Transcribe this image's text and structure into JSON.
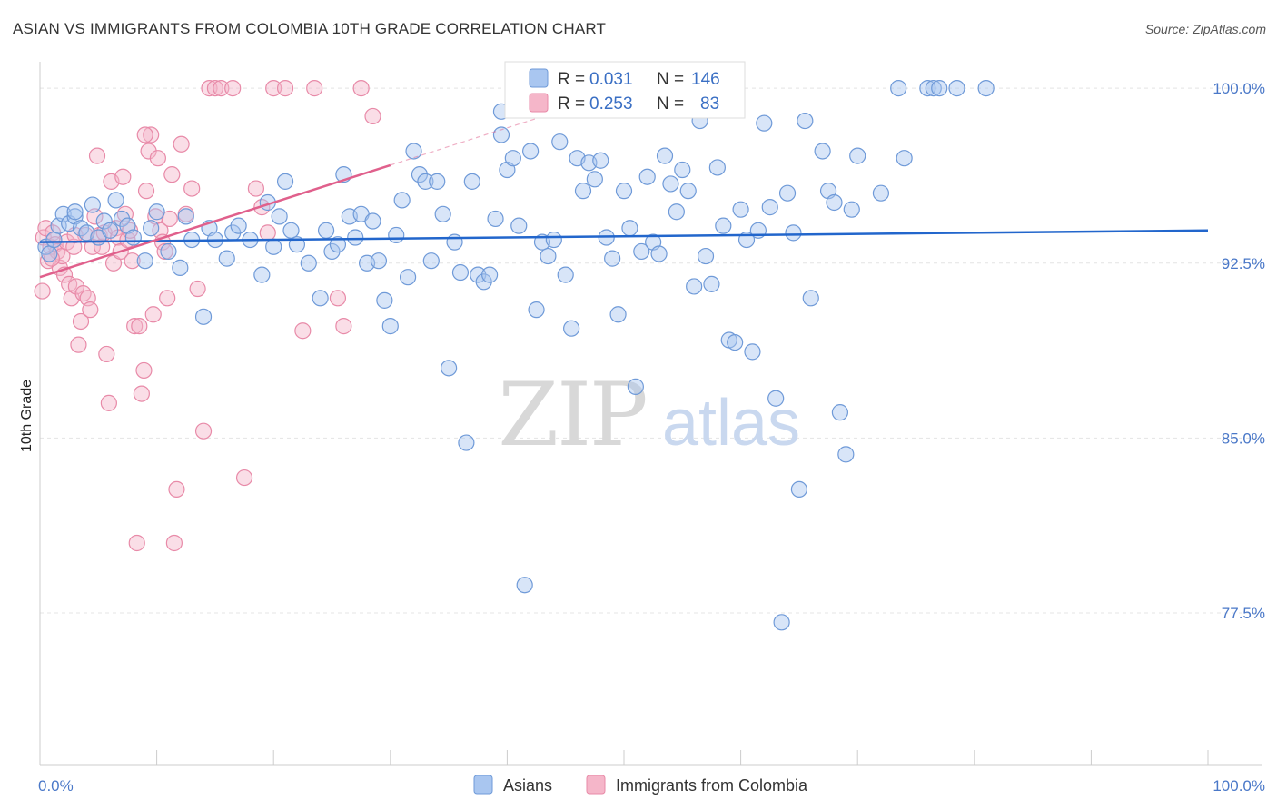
{
  "title": "ASIAN VS IMMIGRANTS FROM COLOMBIA 10TH GRADE CORRELATION CHART",
  "source": "Source: ZipAtlas.com",
  "watermark": {
    "zip": "ZIP",
    "atlas": "atlas"
  },
  "colors": {
    "asian_fill": "#a9c6f0",
    "asian_stroke": "#6f9ad8",
    "asian_line": "#2266cc",
    "colombia_fill": "#f5b6c9",
    "colombia_stroke": "#e88aa8",
    "colombia_line": "#e0608c",
    "grid": "#e4e4e4",
    "tick_text": "#4a78c8"
  },
  "chart_data": {
    "type": "scatter",
    "title": "ASIAN VS IMMIGRANTS FROM COLOMBIA 10TH GRADE CORRELATION CHART",
    "xlabel": "",
    "ylabel": "10th Grade",
    "xlim": [
      0,
      100
    ],
    "ylim": [
      71,
      100.9
    ],
    "x_tick_labels": [
      "0.0%",
      "100.0%"
    ],
    "y_ticks": [
      77.5,
      85.0,
      92.5,
      100.0
    ],
    "y_tick_labels": [
      "77.5%",
      "85.0%",
      "92.5%",
      "100.0%"
    ],
    "grid": true,
    "legend_position": "bottom",
    "stats_box": [
      {
        "series": "Asians",
        "r_label": "R =",
        "r": "0.031",
        "n_label": "N =",
        "n": "146"
      },
      {
        "series": "Immigrants from Colombia",
        "r_label": "R =",
        "r": "0.253",
        "n_label": "N =",
        "n": "83"
      }
    ],
    "series": [
      {
        "name": "Asians",
        "trend": {
          "x": [
            0,
            100
          ],
          "y": [
            93.4,
            93.9
          ]
        },
        "points": [
          [
            0.5,
            93.2
          ],
          [
            0.8,
            92.9
          ],
          [
            1.2,
            93.5
          ],
          [
            1.6,
            94.1
          ],
          [
            2.0,
            94.6
          ],
          [
            2.5,
            94.2
          ],
          [
            3.0,
            94.5
          ],
          [
            3.5,
            94.0
          ],
          [
            4.0,
            93.8
          ],
          [
            4.5,
            95.0
          ],
          [
            5.0,
            93.6
          ],
          [
            5.5,
            94.3
          ],
          [
            6.0,
            93.9
          ],
          [
            6.5,
            95.2
          ],
          [
            7.0,
            94.4
          ],
          [
            7.5,
            94.1
          ],
          [
            8.0,
            93.6
          ],
          [
            9.0,
            92.6
          ],
          [
            9.5,
            94.0
          ],
          [
            10.0,
            94.7
          ],
          [
            11.0,
            93.0
          ],
          [
            12.0,
            92.3
          ],
          [
            12.5,
            94.5
          ],
          [
            13.0,
            93.5
          ],
          [
            14.0,
            90.2
          ],
          [
            14.5,
            94.0
          ],
          [
            15.0,
            93.5
          ],
          [
            16.0,
            92.7
          ],
          [
            16.5,
            93.8
          ],
          [
            17.0,
            94.1
          ],
          [
            18.0,
            93.5
          ],
          [
            19.0,
            92.0
          ],
          [
            19.5,
            95.1
          ],
          [
            20.0,
            93.2
          ],
          [
            20.5,
            94.5
          ],
          [
            21.0,
            96.0
          ],
          [
            21.5,
            93.9
          ],
          [
            22.0,
            93.3
          ],
          [
            23.0,
            92.5
          ],
          [
            24.0,
            91.0
          ],
          [
            24.5,
            93.9
          ],
          [
            25.0,
            93.0
          ],
          [
            25.5,
            93.3
          ],
          [
            26.0,
            96.3
          ],
          [
            26.5,
            94.5
          ],
          [
            27.0,
            93.6
          ],
          [
            27.5,
            94.6
          ],
          [
            28.0,
            92.5
          ],
          [
            28.5,
            94.3
          ],
          [
            29.0,
            92.6
          ],
          [
            29.5,
            90.9
          ],
          [
            30.0,
            89.8
          ],
          [
            30.5,
            93.7
          ],
          [
            31.0,
            95.2
          ],
          [
            31.5,
            91.9
          ],
          [
            32.0,
            97.3
          ],
          [
            32.5,
            96.3
          ],
          [
            33.0,
            96.0
          ],
          [
            33.5,
            92.6
          ],
          [
            34.0,
            96.0
          ],
          [
            34.5,
            94.6
          ],
          [
            35.0,
            88.0
          ],
          [
            35.5,
            93.4
          ],
          [
            36.0,
            92.1
          ],
          [
            36.5,
            84.8
          ],
          [
            37.0,
            96.0
          ],
          [
            37.5,
            92.0
          ],
          [
            38.0,
            91.7
          ],
          [
            38.5,
            92.0
          ],
          [
            39.0,
            94.4
          ],
          [
            39.5,
            98.0
          ],
          [
            40.0,
            96.5
          ],
          [
            40.5,
            97.0
          ],
          [
            41.0,
            94.1
          ],
          [
            41.5,
            78.7
          ],
          [
            42.0,
            97.3
          ],
          [
            42.5,
            90.5
          ],
          [
            43.0,
            93.4
          ],
          [
            43.5,
            92.8
          ],
          [
            44.0,
            93.5
          ],
          [
            44.5,
            97.7
          ],
          [
            45.0,
            92.0
          ],
          [
            45.5,
            89.7
          ],
          [
            46.0,
            97.0
          ],
          [
            46.5,
            95.6
          ],
          [
            47.0,
            96.8
          ],
          [
            47.5,
            96.1
          ],
          [
            48.0,
            96.9
          ],
          [
            48.5,
            93.6
          ],
          [
            49.0,
            92.7
          ],
          [
            49.5,
            90.3
          ],
          [
            50.0,
            95.6
          ],
          [
            50.5,
            94.0
          ],
          [
            51.0,
            87.2
          ],
          [
            51.5,
            93.0
          ],
          [
            52.0,
            96.2
          ],
          [
            52.5,
            93.4
          ],
          [
            53.0,
            92.9
          ],
          [
            53.5,
            97.1
          ],
          [
            54.0,
            95.9
          ],
          [
            54.5,
            94.7
          ],
          [
            55.0,
            96.5
          ],
          [
            55.5,
            95.6
          ],
          [
            56.0,
            91.5
          ],
          [
            56.5,
            98.6
          ],
          [
            57.0,
            92.8
          ],
          [
            57.5,
            91.6
          ],
          [
            58.0,
            96.6
          ],
          [
            58.5,
            94.1
          ],
          [
            59.0,
            89.2
          ],
          [
            59.5,
            89.1
          ],
          [
            60.0,
            94.8
          ],
          [
            60.5,
            93.5
          ],
          [
            61.0,
            88.7
          ],
          [
            61.5,
            93.9
          ],
          [
            62.0,
            98.5
          ],
          [
            62.5,
            94.9
          ],
          [
            63.0,
            86.7
          ],
          [
            63.5,
            77.1
          ],
          [
            64.0,
            95.5
          ],
          [
            64.5,
            93.8
          ],
          [
            65.0,
            82.8
          ],
          [
            65.5,
            98.6
          ],
          [
            66.0,
            91.0
          ],
          [
            67.0,
            97.3
          ],
          [
            67.5,
            95.6
          ],
          [
            68.0,
            95.1
          ],
          [
            68.5,
            86.1
          ],
          [
            69.0,
            84.3
          ],
          [
            69.5,
            94.8
          ],
          [
            70.0,
            97.1
          ],
          [
            72.0,
            95.5
          ],
          [
            73.5,
            100.0
          ],
          [
            74.0,
            97.0
          ],
          [
            76.0,
            100.0
          ],
          [
            76.5,
            100.0
          ],
          [
            77.0,
            100.0
          ],
          [
            78.5,
            100.0
          ],
          [
            81.0,
            100.0
          ],
          [
            39.5,
            99.0
          ],
          [
            47.5,
            99.8
          ],
          [
            3.0,
            94.7
          ]
        ]
      },
      {
        "name": "Immigrants from Colombia",
        "trend": {
          "x": [
            0,
            30
          ],
          "y": [
            91.9,
            96.7
          ]
        },
        "trend_ext": {
          "x": [
            30,
            42.5
          ],
          "y": [
            96.7,
            98.7
          ]
        },
        "points": [
          [
            0.3,
            93.6
          ],
          [
            0.5,
            94.0
          ],
          [
            0.7,
            92.6
          ],
          [
            0.9,
            93.2
          ],
          [
            1.1,
            93.8
          ],
          [
            1.3,
            93.3
          ],
          [
            1.5,
            93.0
          ],
          [
            1.7,
            92.3
          ],
          [
            1.9,
            92.8
          ],
          [
            2.1,
            92.0
          ],
          [
            2.3,
            93.4
          ],
          [
            2.5,
            91.6
          ],
          [
            2.7,
            91.0
          ],
          [
            2.9,
            93.2
          ],
          [
            3.1,
            91.5
          ],
          [
            3.3,
            89.0
          ],
          [
            3.5,
            90.0
          ],
          [
            3.7,
            91.2
          ],
          [
            3.9,
            93.7
          ],
          [
            4.1,
            91.0
          ],
          [
            4.3,
            90.5
          ],
          [
            4.5,
            93.2
          ],
          [
            4.7,
            94.5
          ],
          [
            4.9,
            97.1
          ],
          [
            5.1,
            93.7
          ],
          [
            5.3,
            93.2
          ],
          [
            5.5,
            93.8
          ],
          [
            5.7,
            88.6
          ],
          [
            5.9,
            86.5
          ],
          [
            6.1,
            96.0
          ],
          [
            6.3,
            92.5
          ],
          [
            6.5,
            94.0
          ],
          [
            6.7,
            93.6
          ],
          [
            6.9,
            93.0
          ],
          [
            7.1,
            96.2
          ],
          [
            7.3,
            94.6
          ],
          [
            7.5,
            93.5
          ],
          [
            7.7,
            93.9
          ],
          [
            7.9,
            92.6
          ],
          [
            8.1,
            89.8
          ],
          [
            8.3,
            80.5
          ],
          [
            8.5,
            89.8
          ],
          [
            8.7,
            86.9
          ],
          [
            8.9,
            87.9
          ],
          [
            9.1,
            95.6
          ],
          [
            9.3,
            97.3
          ],
          [
            9.5,
            98.0
          ],
          [
            9.7,
            90.3
          ],
          [
            9.9,
            94.5
          ],
          [
            10.1,
            97.0
          ],
          [
            10.3,
            93.9
          ],
          [
            10.5,
            93.4
          ],
          [
            10.7,
            93.0
          ],
          [
            10.9,
            91.0
          ],
          [
            11.1,
            94.4
          ],
          [
            11.3,
            96.3
          ],
          [
            11.5,
            80.5
          ],
          [
            11.7,
            82.8
          ],
          [
            12.1,
            97.6
          ],
          [
            12.5,
            94.6
          ],
          [
            13.0,
            95.7
          ],
          [
            13.5,
            91.4
          ],
          [
            14.0,
            85.3
          ],
          [
            14.5,
            100.0
          ],
          [
            15.0,
            100.0
          ],
          [
            15.5,
            100.0
          ],
          [
            16.5,
            100.0
          ],
          [
            17.5,
            83.3
          ],
          [
            18.5,
            95.7
          ],
          [
            19.0,
            94.9
          ],
          [
            19.5,
            93.8
          ],
          [
            20.0,
            100.0
          ],
          [
            21.0,
            100.0
          ],
          [
            22.5,
            89.6
          ],
          [
            23.5,
            100.0
          ],
          [
            25.5,
            91.0
          ],
          [
            26.0,
            89.8
          ],
          [
            27.5,
            100.0
          ],
          [
            28.5,
            98.8
          ],
          [
            1.0,
            92.7
          ],
          [
            9.0,
            98.0
          ],
          [
            3.0,
            93.7
          ],
          [
            0.2,
            91.3
          ]
        ]
      }
    ]
  },
  "legend": [
    "Asians",
    "Immigrants from Colombia"
  ]
}
